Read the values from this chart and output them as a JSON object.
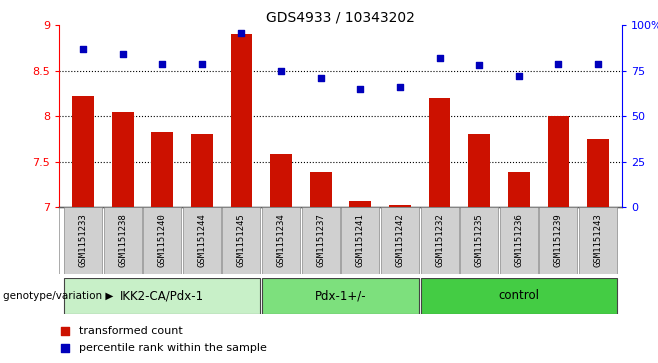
{
  "title": "GDS4933 / 10343202",
  "samples": [
    "GSM1151233",
    "GSM1151238",
    "GSM1151240",
    "GSM1151244",
    "GSM1151245",
    "GSM1151234",
    "GSM1151237",
    "GSM1151241",
    "GSM1151242",
    "GSM1151232",
    "GSM1151235",
    "GSM1151236",
    "GSM1151239",
    "GSM1151243"
  ],
  "transformed_count": [
    8.22,
    8.05,
    7.82,
    7.8,
    8.9,
    7.58,
    7.38,
    7.07,
    7.02,
    8.2,
    7.8,
    7.38,
    8.0,
    7.75
  ],
  "percentile_rank": [
    87,
    84,
    79,
    79,
    96,
    75,
    71,
    65,
    66,
    82,
    78,
    72,
    79,
    79
  ],
  "groups": [
    {
      "label": "IKK2-CA/Pdx-1",
      "start": 0,
      "end": 5,
      "color": "#c8f0c8"
    },
    {
      "label": "Pdx-1+/-",
      "start": 5,
      "end": 9,
      "color": "#7de07d"
    },
    {
      "label": "control",
      "start": 9,
      "end": 14,
      "color": "#44cc44"
    }
  ],
  "ylim_left": [
    7.0,
    9.0
  ],
  "ylim_right": [
    0,
    100
  ],
  "yticks_left": [
    7.0,
    7.5,
    8.0,
    8.5,
    9.0
  ],
  "ytick_labels_left": [
    "7",
    "7.5",
    "8",
    "8.5",
    "9"
  ],
  "yticks_right": [
    0,
    25,
    50,
    75,
    100
  ],
  "ytick_labels_right": [
    "0",
    "25",
    "50",
    "75",
    "100%"
  ],
  "hlines": [
    7.5,
    8.0,
    8.5
  ],
  "bar_color": "#cc1100",
  "dot_color": "#0000bb",
  "xlabel": "genotype/variation",
  "legend_bar": "transformed count",
  "legend_dot": "percentile rank within the sample",
  "bar_width": 0.55,
  "bg_color": "#ffffff",
  "label_box_color": "#d0d0d0",
  "label_box_edge": "#888888"
}
